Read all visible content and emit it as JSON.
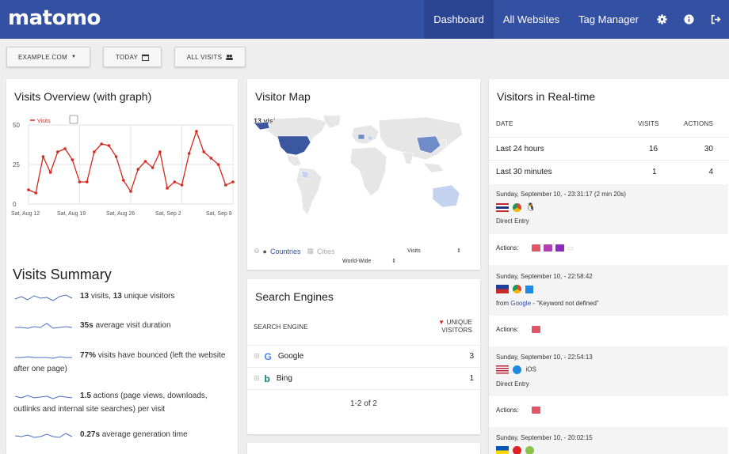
{
  "app": {
    "logo": "matomo"
  },
  "nav": {
    "items": [
      {
        "label": "Dashboard"
      },
      {
        "label": "All Websites"
      },
      {
        "label": "Tag Manager"
      }
    ]
  },
  "toolbar": {
    "site": "EXAMPLE.COM",
    "date": "TODAY",
    "segment": "ALL VISITS"
  },
  "visits_overview": {
    "title": "Visits Overview (with graph)",
    "legend": "Visits",
    "chart_data": {
      "type": "line",
      "series": [
        {
          "name": "Visits",
          "values": [
            9,
            7,
            30,
            20,
            33,
            35,
            28,
            14,
            14,
            33,
            38,
            37,
            30,
            15,
            8,
            22,
            27,
            23,
            33,
            10,
            14,
            12,
            32,
            46,
            33,
            29,
            25,
            12,
            14
          ]
        }
      ],
      "x_tick_labels": [
        "Sat, Aug 12",
        "Sat, Aug 19",
        "Sat, Aug 26",
        "Sat, Sep 2",
        "Sat, Sep 9"
      ],
      "y_ticks": [
        0,
        25,
        50
      ],
      "ylim": [
        0,
        50
      ],
      "grid": true,
      "legend_position": "top-left",
      "color": "#d4291f"
    }
  },
  "visits_summary": {
    "title": "Visits Summary",
    "rows": [
      {
        "bold": "13",
        "text": " visits, ",
        "bold2": "13",
        "text2": " unique visitors"
      },
      {
        "bold": "35s",
        "text": " average visit duration",
        "bold2": "",
        "text2": ""
      },
      {
        "bold": "77%",
        "text": " visits have bounced (left the website after one page)",
        "bold2": "",
        "text2": ""
      },
      {
        "bold": "1.5",
        "text": " actions (page views, downloads, outlinks and internal site searches) per visit",
        "bold2": "",
        "text2": ""
      },
      {
        "bold": "0.27s",
        "text": " average generation time",
        "bold2": "",
        "text2": ""
      }
    ]
  },
  "visitor_map": {
    "title": "Visitor Map",
    "visits_label": "13 visits",
    "tab_countries": "Countries",
    "tab_cities": "Cities",
    "metric": "Visits",
    "region": "World-Wide"
  },
  "search_engines": {
    "title": "Search Engines",
    "col1": "SEARCH ENGINE",
    "col2": "UNIQUE VISITORS",
    "rows": [
      {
        "name": "Google",
        "value": "3"
      },
      {
        "name": "Bing",
        "value": "1"
      }
    ],
    "pagination": "1-2 of 2"
  },
  "realtime": {
    "title": "Visitors in Real-time",
    "cols": {
      "date": "DATE",
      "visits": "VISITS",
      "actions": "ACTIONS"
    },
    "rows": [
      {
        "label": "Last 24 hours",
        "visits": "16",
        "actions": "30"
      },
      {
        "label": "Last 30 minutes",
        "visits": "1",
        "actions": "4"
      }
    ],
    "visits": [
      {
        "time": "Sunday, September 10, - 23:31:17 (2 min 20s)",
        "source": "Direct Entry",
        "actions_label": "Actions:"
      },
      {
        "time": "Sunday, September 10, - 22:58:42",
        "source_prefix": "from ",
        "source_link": "Google",
        "source_suffix": " - \"Keyword not defined\"",
        "actions_label": "Actions:"
      },
      {
        "time": "Sunday, September 10, - 22:54:13",
        "os": "iOS",
        "source": "Direct Entry",
        "actions_label": "Actions:"
      },
      {
        "time": "Sunday, September 10, - 20:02:15"
      }
    ]
  },
  "colors": {
    "brand": "#3450a3",
    "line": "#d4291f",
    "map_high": "#3a57a0",
    "map_mid": "#6f8cc8",
    "map_low": "#c3d2ee",
    "folder": "#e05569",
    "folder2": "#b13fb3"
  },
  "icons": [
    "gear-icon",
    "info-icon",
    "logout-icon",
    "calendar-icon",
    "segment-icon",
    "google-icon",
    "bing-icon",
    "flag-icons",
    "browser-icons",
    "folder-icons"
  ]
}
